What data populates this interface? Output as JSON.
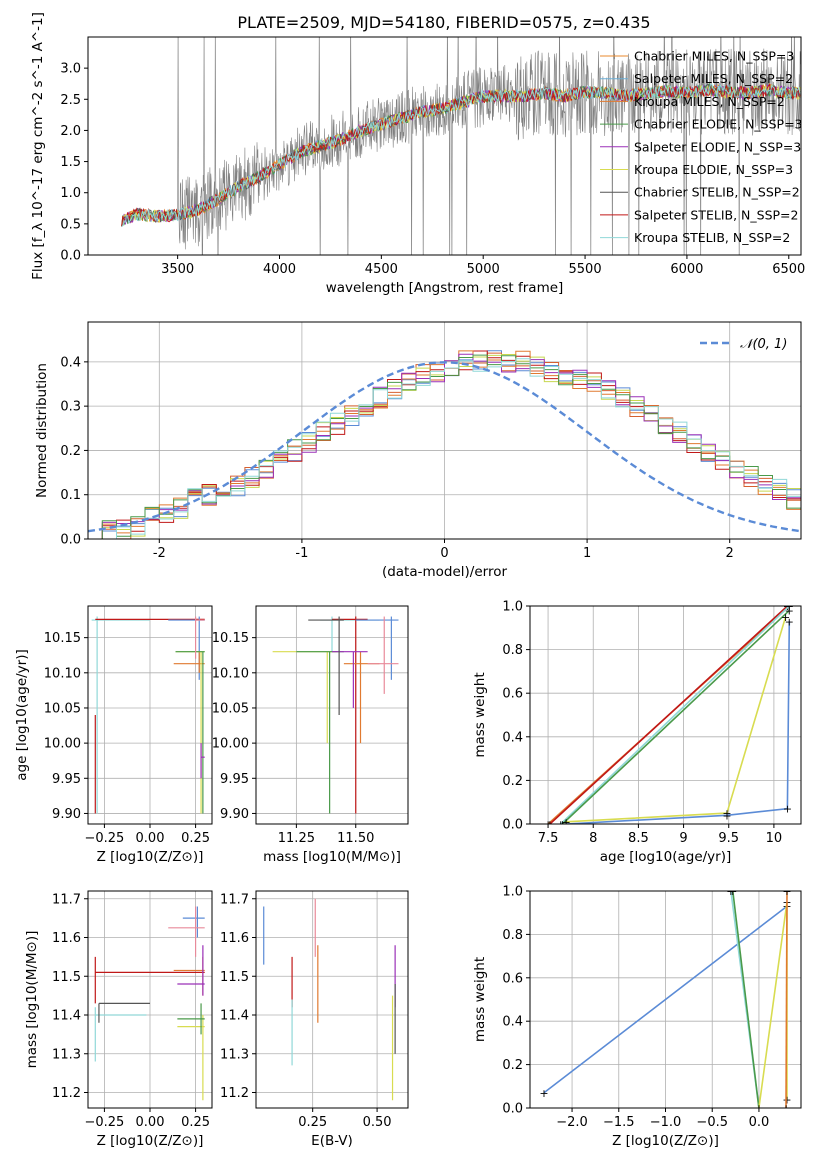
{
  "figure": {
    "title": "PLATE=2509, MJD=54180, FIBERID=0575, z=0.435"
  },
  "colors": {
    "data": "#808080",
    "gauss": "#5b8bd6",
    "models": [
      "#E88A2E",
      "#6BAED6",
      "#E07A30",
      "#4A9A4A",
      "#9B30B8",
      "#D8DC50",
      "#555555",
      "#C01818",
      "#90D8D8"
    ],
    "hist": [
      "#5b8bd6",
      "#d66030",
      "#c8d850",
      "#c01818",
      "#e07a30",
      "#9b30b8",
      "#4a9a4a",
      "#90d8d8"
    ]
  },
  "chart_data": [
    {
      "id": "spectrum",
      "type": "line",
      "xlabel": "wavelength [Angstrom, rest frame]",
      "ylabel": "Flux [f_λ 10^-17 erg cm^-2 s^-1 A^-1]",
      "xlim": [
        3060,
        6560
      ],
      "ylim": [
        0,
        3.5
      ],
      "xticks": [
        3500,
        4000,
        4500,
        5000,
        5500,
        6000,
        6500
      ],
      "yticks": [
        0.0,
        0.5,
        1.0,
        1.5,
        2.0,
        2.5,
        3.0
      ],
      "legend_position": "upper-right",
      "grid": false,
      "series": [
        {
          "name": "Chabrier MILES, N_SSP=3"
        },
        {
          "name": "Salpeter MILES, N_SSP=2"
        },
        {
          "name": "Kroupa MILES, N_SSP=2"
        },
        {
          "name": "Chabrier ELODIE, N_SSP=3"
        },
        {
          "name": "Salpeter ELODIE, N_SSP=3"
        },
        {
          "name": "Kroupa ELODIE, N_SSP=3"
        },
        {
          "name": "Chabrier STELIB, N_SSP=2"
        },
        {
          "name": "Salpeter STELIB, N_SSP=2"
        },
        {
          "name": "Kroupa STELIB, N_SSP=2"
        }
      ],
      "continuum": [
        [
          3220,
          0.55
        ],
        [
          3300,
          0.65
        ],
        [
          3400,
          0.62
        ],
        [
          3500,
          0.64
        ],
        [
          3600,
          0.72
        ],
        [
          3700,
          0.9
        ],
        [
          3800,
          1.1
        ],
        [
          3900,
          1.25
        ],
        [
          4000,
          1.45
        ],
        [
          4100,
          1.65
        ],
        [
          4200,
          1.75
        ],
        [
          4300,
          1.85
        ],
        [
          4400,
          2.0
        ],
        [
          4500,
          2.1
        ],
        [
          4600,
          2.2
        ],
        [
          4700,
          2.3
        ],
        [
          4800,
          2.35
        ],
        [
          4900,
          2.45
        ],
        [
          5000,
          2.55
        ],
        [
          5100,
          2.55
        ],
        [
          5200,
          2.55
        ],
        [
          5300,
          2.6
        ],
        [
          5400,
          2.55
        ],
        [
          5500,
          2.62
        ],
        [
          5600,
          2.6
        ],
        [
          5700,
          2.55
        ],
        [
          5800,
          2.6
        ],
        [
          5900,
          2.63
        ],
        [
          6000,
          2.6
        ],
        [
          6100,
          2.65
        ],
        [
          6200,
          2.62
        ],
        [
          6300,
          2.6
        ],
        [
          6400,
          2.65
        ],
        [
          6500,
          2.6
        ]
      ]
    },
    {
      "id": "residual-hist",
      "type": "line",
      "xlabel": "(data-model)/error",
      "ylabel": "Normed distribution",
      "xlim": [
        -2.5,
        2.5
      ],
      "ylim": [
        0,
        0.49
      ],
      "xticks": [
        -2,
        -1,
        0,
        1,
        2
      ],
      "yticks": [
        0.0,
        0.1,
        0.2,
        0.3,
        0.4
      ],
      "grid": true,
      "legend_position": "upper-right",
      "gaussian_label": "𝒩(0, 1)",
      "bin_edges_start": -2.5,
      "bin_width": 0.1,
      "hist_base": [
        0.02,
        0.02,
        0.02,
        0.03,
        0.05,
        0.06,
        0.07,
        0.09,
        0.1,
        0.11,
        0.12,
        0.14,
        0.16,
        0.18,
        0.2,
        0.22,
        0.24,
        0.26,
        0.28,
        0.3,
        0.32,
        0.34,
        0.35,
        0.37,
        0.38,
        0.39,
        0.4,
        0.4,
        0.41,
        0.4,
        0.4,
        0.39,
        0.38,
        0.37,
        0.36,
        0.35,
        0.34,
        0.32,
        0.3,
        0.28,
        0.26,
        0.24,
        0.22,
        0.2,
        0.18,
        0.16,
        0.14,
        0.12,
        0.11,
        0.09
      ]
    },
    {
      "id": "age-vs-Z",
      "type": "scatter",
      "xlabel": "Z [log10(Z/Z⊙)]",
      "ylabel": "age [log10(age/yr)]",
      "xlim": [
        -0.34,
        0.34
      ],
      "ylim": [
        9.885,
        10.195
      ],
      "xticks": [
        -0.25,
        0.0,
        0.25
      ],
      "xtick_labels": [
        "−0.25",
        "0.00",
        "0.25"
      ],
      "yticks": [
        9.9,
        9.95,
        10.0,
        10.05,
        10.1,
        10.15
      ],
      "grid": true
    },
    {
      "id": "age-vs-mass",
      "type": "scatter",
      "xlabel": "mass [log10(M/M⊙)]",
      "ylabel": "",
      "xlim": [
        11.08,
        11.72
      ],
      "ylim": [
        9.885,
        10.195
      ],
      "xticks": [
        11.25,
        11.5
      ],
      "xtick_labels": [
        "11.25",
        "11.50"
      ],
      "yticks": [
        9.9,
        9.95,
        10.0,
        10.05,
        10.1,
        10.15
      ],
      "grid": true
    },
    {
      "id": "massweight-vs-age",
      "type": "line",
      "xlabel": "age [log10(age/yr)]",
      "ylabel": "mass weight",
      "xlim": [
        7.3,
        10.3
      ],
      "ylim": [
        0,
        1.0
      ],
      "xticks": [
        7.5,
        8.0,
        8.5,
        9.0,
        9.5,
        10.0
      ],
      "yticks": [
        0.0,
        0.2,
        0.4,
        0.6,
        0.8,
        1.0
      ],
      "grid": true
    },
    {
      "id": "mass-vs-Z",
      "type": "scatter",
      "xlabel": "Z [log10(Z/Z⊙)]",
      "ylabel": "mass [log10(M/M⊙)]",
      "xlim": [
        -0.34,
        0.34
      ],
      "ylim": [
        11.16,
        11.72
      ],
      "xticks": [
        -0.25,
        0.0,
        0.25
      ],
      "xtick_labels": [
        "−0.25",
        "0.00",
        "0.25"
      ],
      "yticks": [
        11.2,
        11.3,
        11.4,
        11.5,
        11.6,
        11.7
      ],
      "grid": true
    },
    {
      "id": "mass-vs-EBV",
      "type": "scatter",
      "xlabel": "E(B-V)",
      "ylabel": "",
      "xlim": [
        0.03,
        0.62
      ],
      "ylim": [
        11.16,
        11.72
      ],
      "xticks": [
        0.25,
        0.5
      ],
      "xtick_labels": [
        "0.25",
        "0.50"
      ],
      "yticks": [
        11.2,
        11.3,
        11.4,
        11.5,
        11.6,
        11.7
      ],
      "grid": true
    },
    {
      "id": "massweight-vs-Z",
      "type": "line",
      "xlabel": "Z [log10(Z/Z⊙)]",
      "ylabel": "mass weight",
      "xlim": [
        -2.45,
        0.45
      ],
      "ylim": [
        0,
        1.0
      ],
      "xticks": [
        -2.0,
        -1.5,
        -1.0,
        -0.5,
        0.0
      ],
      "xtick_labels": [
        "−2.0",
        "−1.5",
        "−1.0",
        "−0.5",
        "0.0"
      ],
      "yticks": [
        0.0,
        0.2,
        0.4,
        0.6,
        0.8,
        1.0
      ],
      "grid": true
    }
  ]
}
